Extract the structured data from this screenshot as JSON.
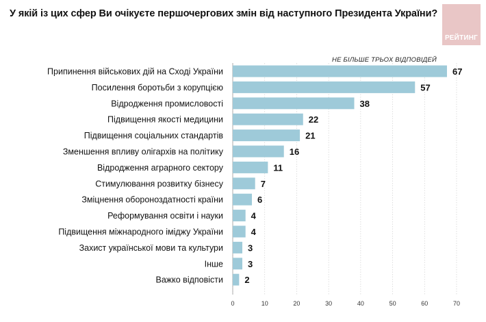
{
  "title": "У якій із цих сфер Ви очікуєте першочергових змін від наступного Президента України?",
  "note": "НЕ БІЛЬШЕ ТРЬОХ ВІДПОВІДЕЙ",
  "logo": {
    "text": "РЕЙТИНГ"
  },
  "colors": {
    "bar": "#9ecad9",
    "logo_bg": "#e9c6c6",
    "gridline": "#d0d0d0"
  },
  "chart_data": {
    "type": "bar",
    "orientation": "horizontal",
    "categories": [
      "Припинення військових дій на Сході України",
      "Посилення боротьби з корупцією",
      "Відродження промисловості",
      "Підвищення якості медицини",
      "Підвищення соціальних стандартів",
      "Зменшення впливу олігархів на політику",
      "Відродження аграрного сектору",
      "Стимулювання розвитку бізнесу",
      "Зміцнення обороноздатності країни",
      "Реформування освіти і науки",
      "Підвищення міжнародного іміджу України",
      "Захист української мови та культури",
      "Інше",
      "Важко відповісти"
    ],
    "values": [
      67,
      57,
      38,
      22,
      21,
      16,
      11,
      7,
      6,
      4,
      4,
      3,
      3,
      2
    ],
    "xlim": [
      0,
      70
    ],
    "xticks": [
      0,
      10,
      20,
      30,
      40,
      50,
      60,
      70
    ],
    "grid": true
  }
}
